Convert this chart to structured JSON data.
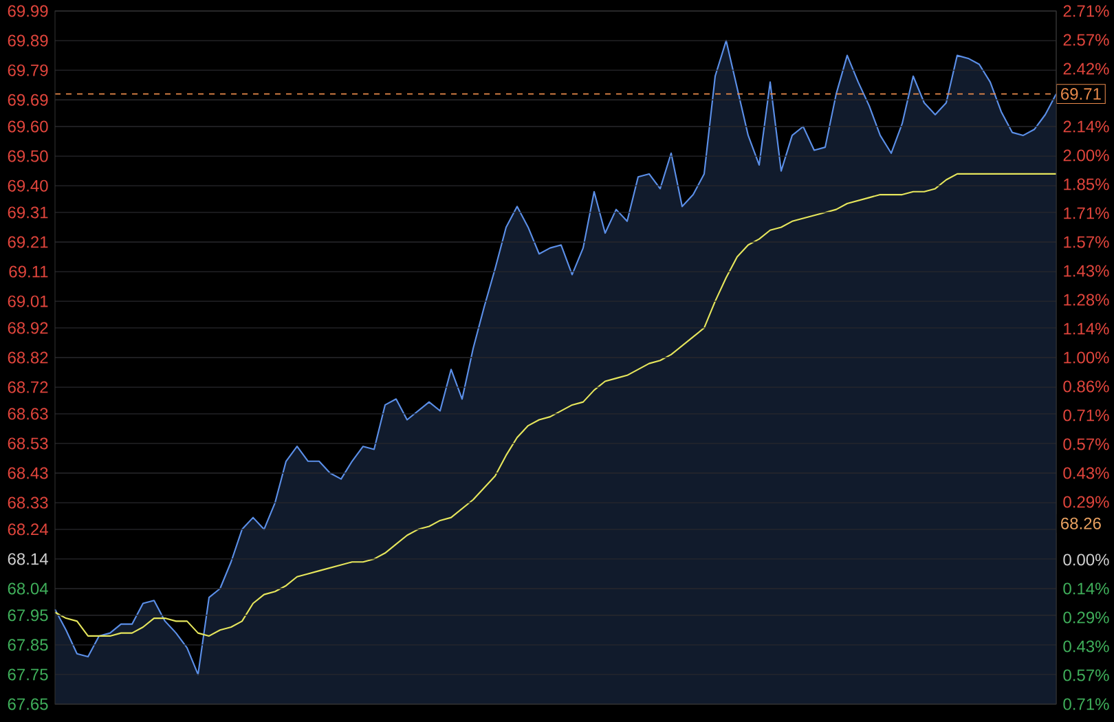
{
  "chart_data": {
    "type": "line",
    "categories": [
      null,
      null,
      null,
      null,
      null,
      null,
      null,
      null,
      null,
      null,
      null,
      null,
      null,
      null,
      null,
      null,
      null,
      null,
      null,
      null,
      null,
      null,
      null,
      null,
      null,
      null,
      null,
      null,
      null,
      null,
      null,
      null,
      null,
      null,
      null,
      null,
      null,
      null,
      null,
      null,
      null,
      null,
      null,
      null,
      null,
      null,
      null,
      null,
      null,
      null,
      null,
      null,
      null,
      null,
      null,
      null,
      null,
      null,
      null,
      null,
      null,
      null,
      null,
      null,
      null,
      null,
      null,
      null,
      null,
      null,
      null,
      null,
      null,
      null,
      null,
      null,
      null,
      null,
      null,
      null,
      null,
      null,
      null,
      null,
      null,
      null,
      null,
      null,
      null,
      null,
      null,
      null
    ],
    "series": [
      {
        "type": "area",
        "color": "#5b8fe8",
        "values": [
          67.97,
          67.9,
          67.82,
          67.81,
          67.88,
          67.89,
          67.92,
          67.92,
          67.99,
          68.0,
          67.93,
          67.89,
          67.84,
          67.75,
          68.01,
          68.04,
          68.13,
          68.24,
          68.28,
          68.24,
          68.33,
          68.47,
          68.52,
          68.47,
          68.47,
          68.43,
          68.41,
          68.47,
          68.52,
          68.51,
          68.66,
          68.68,
          68.61,
          68.64,
          68.67,
          68.64,
          68.78,
          68.68,
          68.85,
          68.99,
          69.12,
          69.26,
          69.33,
          69.26,
          69.17,
          69.19,
          69.2,
          69.1,
          69.19,
          69.38,
          69.24,
          69.32,
          69.28,
          69.43,
          69.44,
          69.39,
          69.51,
          69.33,
          69.37,
          69.44,
          69.77,
          69.89,
          69.73,
          69.57,
          69.47,
          69.75,
          69.45,
          69.57,
          69.6,
          69.52,
          69.53,
          69.71,
          69.84,
          69.75,
          69.67,
          69.57,
          69.51,
          69.61,
          69.77,
          69.68,
          69.64,
          69.68,
          69.84,
          69.83,
          69.81,
          69.75,
          69.65,
          69.58,
          69.57,
          69.59,
          69.64,
          69.71
        ]
      },
      {
        "color": "#e6e65c",
        "values": [
          67.96,
          67.94,
          67.93,
          67.88,
          67.88,
          67.88,
          67.89,
          67.89,
          67.91,
          67.94,
          67.94,
          67.93,
          67.93,
          67.89,
          67.88,
          67.9,
          67.91,
          67.93,
          67.99,
          68.02,
          68.03,
          68.05,
          68.08,
          68.09,
          68.1,
          68.11,
          68.12,
          68.13,
          68.13,
          68.14,
          68.16,
          68.19,
          68.22,
          68.24,
          68.25,
          68.27,
          68.28,
          68.31,
          68.34,
          68.38,
          68.42,
          68.49,
          68.55,
          68.59,
          68.61,
          68.62,
          68.64,
          68.66,
          68.67,
          68.71,
          68.74,
          68.75,
          68.76,
          68.78,
          68.8,
          68.81,
          68.83,
          68.86,
          68.89,
          68.92,
          69.01,
          69.09,
          69.16,
          69.2,
          69.22,
          69.25,
          69.26,
          69.28,
          69.29,
          69.3,
          69.31,
          69.32,
          69.34,
          69.35,
          69.36,
          69.37,
          69.37,
          69.37,
          69.38,
          69.38,
          69.39,
          69.42,
          69.44,
          69.44,
          69.44,
          69.44,
          69.44,
          69.44,
          69.44,
          69.44,
          69.44,
          69.44
        ]
      }
    ],
    "ylim": [
      67.65,
      69.99
    ],
    "yticks": [
      {
        "value": 67.65,
        "label": "67.65"
      },
      {
        "value": 67.75,
        "label": "67.75"
      },
      {
        "value": 67.85,
        "label": "67.85"
      },
      {
        "value": 67.95,
        "label": "67.95"
      },
      {
        "value": 68.04,
        "label": "68.04"
      },
      {
        "value": 68.14,
        "label": "68.14"
      },
      {
        "value": 68.24,
        "label": "68.24"
      },
      {
        "value": 68.33,
        "label": "68.33"
      },
      {
        "value": 68.43,
        "label": "68.43"
      },
      {
        "value": 68.53,
        "label": "68.53"
      },
      {
        "value": 68.63,
        "label": "68.63"
      },
      {
        "value": 68.72,
        "label": "68.72"
      },
      {
        "value": 68.82,
        "label": "68.82"
      },
      {
        "value": 68.92,
        "label": "68.92"
      },
      {
        "value": 69.01,
        "label": "69.01"
      },
      {
        "value": 69.11,
        "label": "69.11"
      },
      {
        "value": 69.21,
        "label": "69.21"
      },
      {
        "value": 69.31,
        "label": "69.31"
      },
      {
        "value": 69.4,
        "label": "69.40"
      },
      {
        "value": 69.5,
        "label": "69.50"
      },
      {
        "value": 69.6,
        "label": "69.60"
      },
      {
        "value": 69.69,
        "label": "69.69"
      },
      {
        "value": 69.79,
        "label": "69.79"
      },
      {
        "value": 69.89,
        "label": "69.89"
      },
      {
        "value": 69.99,
        "label": "69.99"
      }
    ],
    "y2lim": [
      -0.7125,
      2.7075
    ],
    "y2ticks": [
      {
        "value": -0.7125,
        "label": "0.71%"
      },
      {
        "value": -0.57,
        "label": "0.57%"
      },
      {
        "value": -0.4275,
        "label": "0.43%"
      },
      {
        "value": -0.285,
        "label": "0.29%"
      },
      {
        "value": -0.1425,
        "label": "0.14%"
      },
      {
        "value": 0,
        "label": "0.00%"
      },
      {
        "value": 0.1425,
        "label": null
      },
      {
        "value": 0.285,
        "label": "0.29%"
      },
      {
        "value": 0.4275,
        "label": "0.43%"
      },
      {
        "value": 0.57,
        "label": "0.57%"
      },
      {
        "value": 0.7125,
        "label": "0.71%"
      },
      {
        "value": 0.855,
        "label": "0.86%"
      },
      {
        "value": 0.9975,
        "label": "1.00%"
      },
      {
        "value": 1.14,
        "label": "1.14%"
      },
      {
        "value": 1.2825,
        "label": "1.28%"
      },
      {
        "value": 1.425,
        "label": "1.43%"
      },
      {
        "value": 1.5675,
        "label": "1.57%"
      },
      {
        "value": 1.71,
        "label": "1.71%"
      },
      {
        "value": 1.8525,
        "label": "1.85%"
      },
      {
        "value": 1.995,
        "label": "2.00%"
      },
      {
        "value": 2.1375,
        "label": "2.14%"
      },
      {
        "value": 2.28,
        "label": null
      },
      {
        "value": 2.4225,
        "label": "2.42%"
      },
      {
        "value": 2.565,
        "label": "2.57%"
      },
      {
        "value": 2.7075,
        "label": "2.71%"
      }
    ],
    "ref_lines": [
      {
        "axis": "y",
        "value": 69.71,
        "label": "69.71",
        "color": "#e8894a",
        "line_style": "dashed"
      }
    ],
    "annotations": [
      {
        "text": "68.26",
        "y": 68.26
      }
    ],
    "grid": "y"
  }
}
